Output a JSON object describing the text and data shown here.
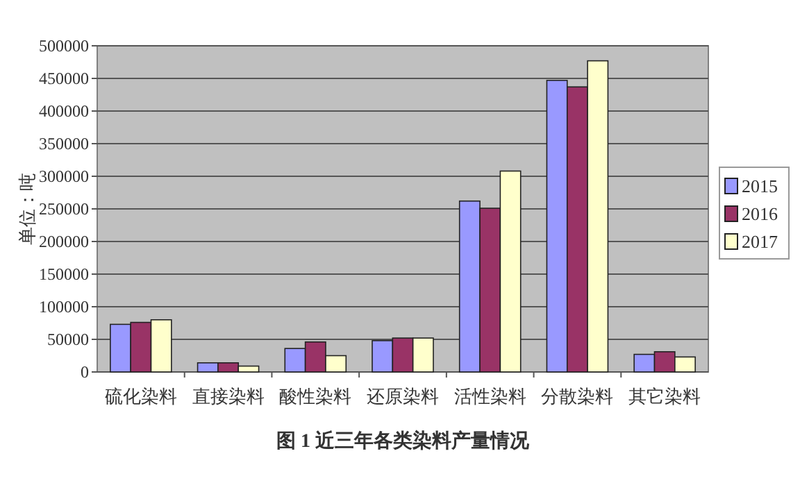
{
  "chart_data": {
    "type": "bar",
    "title": "图 1  近三年各类染料产量情况",
    "ylabel": "单位：吨",
    "categories": [
      "硫化染料",
      "直接染料",
      "酸性染料",
      "还原染料",
      "活性染料",
      "分散染料",
      "其它染料"
    ],
    "series": [
      {
        "name": "2015",
        "color": "#9999ff",
        "values": [
          73000,
          14000,
          36000,
          48000,
          262000,
          447000,
          27000
        ]
      },
      {
        "name": "2016",
        "color": "#993366",
        "values": [
          76000,
          14000,
          46000,
          52000,
          251000,
          437000,
          31000
        ]
      },
      {
        "name": "2017",
        "color": "#ffffcc",
        "values": [
          80000,
          9000,
          25000,
          52000,
          308000,
          477000,
          23000
        ]
      }
    ],
    "ylim": [
      0,
      500000
    ],
    "yticks": [
      0,
      50000,
      100000,
      150000,
      200000,
      250000,
      300000,
      350000,
      400000,
      450000,
      500000
    ],
    "grid": "y",
    "legend": "right"
  }
}
